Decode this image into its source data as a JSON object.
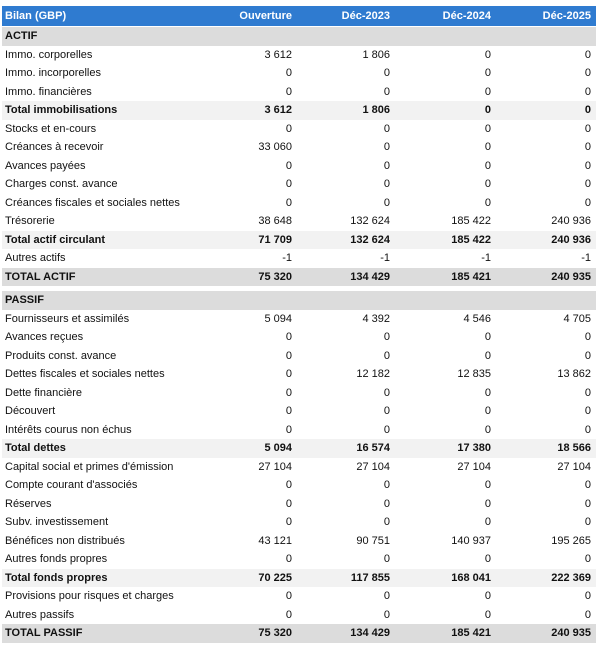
{
  "table": {
    "header": [
      "Bilan (GBP)",
      "Ouverture",
      "Déc-2023",
      "Déc-2024",
      "Déc-2025"
    ],
    "rows": [
      [
        "ACTIF"
      ],
      [
        "Immo. corporelles",
        "3 612",
        "1 806",
        "0",
        "0"
      ],
      [
        "Immo. incorporelles",
        "0",
        "0",
        "0",
        "0"
      ],
      [
        "Immo. financières",
        "0",
        "0",
        "0",
        "0"
      ],
      [
        "Total immobilisations",
        "3 612",
        "1 806",
        "0",
        "0"
      ],
      [
        "Stocks et en-cours",
        "0",
        "0",
        "0",
        "0"
      ],
      [
        "Créances à recevoir",
        "33 060",
        "0",
        "0",
        "0"
      ],
      [
        "Avances payées",
        "0",
        "0",
        "0",
        "0"
      ],
      [
        "Charges const. avance",
        "0",
        "0",
        "0",
        "0"
      ],
      [
        "Créances fiscales et sociales nettes",
        "0",
        "0",
        "0",
        "0"
      ],
      [
        "Trésorerie",
        "38 648",
        "132 624",
        "185 422",
        "240 936"
      ],
      [
        "Total actif circulant",
        "71 709",
        "132 624",
        "185 422",
        "240 936"
      ],
      [
        "Autres actifs",
        "-1",
        "-1",
        "-1",
        "-1"
      ],
      [
        "TOTAL ACTIF",
        "75 320",
        "134 429",
        "185 421",
        "240 935"
      ],
      [
        "PASSIF"
      ],
      [
        "Fournisseurs et assimilés",
        "5 094",
        "4 392",
        "4 546",
        "4 705"
      ],
      [
        "Avances reçues",
        "0",
        "0",
        "0",
        "0"
      ],
      [
        "Produits const. avance",
        "0",
        "0",
        "0",
        "0"
      ],
      [
        "Dettes fiscales et sociales nettes",
        "0",
        "12 182",
        "12 835",
        "13 862"
      ],
      [
        "Dette financière",
        "0",
        "0",
        "0",
        "0"
      ],
      [
        "Découvert",
        "0",
        "0",
        "0",
        "0"
      ],
      [
        "Intérêts courus non échus",
        "0",
        "0",
        "0",
        "0"
      ],
      [
        "Total dettes",
        "5 094",
        "16 574",
        "17 380",
        "18 566"
      ],
      [
        "Capital social et primes d'émission",
        "27 104",
        "27 104",
        "27 104",
        "27 104"
      ],
      [
        "Compte courant d'associés",
        "0",
        "0",
        "0",
        "0"
      ],
      [
        "Réserves",
        "0",
        "0",
        "0",
        "0"
      ],
      [
        "Subv. investissement",
        "0",
        "0",
        "0",
        "0"
      ],
      [
        "Bénéfices non distribués",
        "43 121",
        "90 751",
        "140 937",
        "195 265"
      ],
      [
        "Autres fonds propres",
        "0",
        "0",
        "0",
        "0"
      ],
      [
        "Total fonds propres",
        "70 225",
        "117 855",
        "168 041",
        "222 369"
      ],
      [
        "Provisions pour risques et charges",
        "0",
        "0",
        "0",
        "0"
      ],
      [
        "Autres passifs",
        "0",
        "0",
        "0",
        "0"
      ],
      [
        "TOTAL PASSIF",
        "75 320",
        "134 429",
        "185 421",
        "240 935"
      ]
    ]
  }
}
